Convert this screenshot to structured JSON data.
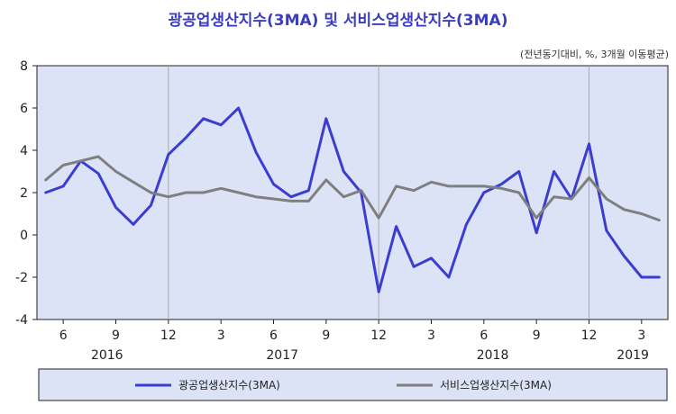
{
  "chart_data": {
    "type": "line",
    "title": "광공업생산지수(3MA)  및  서비스업생산지수(3MA)",
    "subtitle": "(전년동기대비,  %, 3개월  이동평균)",
    "ylim": [
      -4,
      8
    ],
    "yticks": [
      "8",
      "6",
      "4",
      "2",
      "0",
      "-2",
      "-4"
    ],
    "x": [
      "2016-05",
      "2016-06",
      "2016-07",
      "2016-08",
      "2016-09",
      "2016-10",
      "2016-11",
      "2016-12",
      "2017-01",
      "2017-02",
      "2017-03",
      "2017-04",
      "2017-05",
      "2017-06",
      "2017-07",
      "2017-08",
      "2017-09",
      "2017-10",
      "2017-11",
      "2017-12",
      "2018-01",
      "2018-02",
      "2018-03",
      "2018-04",
      "2018-05",
      "2018-06",
      "2018-07",
      "2018-08",
      "2018-09",
      "2018-10",
      "2018-11",
      "2018-12",
      "2019-01",
      "2019-02",
      "2019-03",
      "2019-04"
    ],
    "month_ticks": [
      "6",
      "9",
      "12",
      "3",
      "6",
      "9",
      "12",
      "3",
      "6",
      "9",
      "12",
      "3"
    ],
    "year_labels": [
      "2016",
      "2017",
      "2018",
      "2019"
    ],
    "grid": "vertical lines at December",
    "legend_position": "bottom",
    "colors": {
      "plot_bg": "#dde3f7",
      "legend_bg": "#dde3f7",
      "grid": "#aaaaaa"
    },
    "series": [
      {
        "name": "광공업생산지수(3MA)",
        "color": "#3b3dd0",
        "values": [
          2.0,
          2.3,
          3.5,
          2.9,
          1.3,
          0.5,
          1.4,
          3.8,
          4.6,
          5.5,
          5.2,
          6.0,
          3.9,
          2.4,
          1.8,
          2.1,
          5.5,
          3.0,
          2.0,
          -2.7,
          0.4,
          -1.5,
          -1.1,
          -2.0,
          0.5,
          2.0,
          2.4,
          3.0,
          0.1,
          3.0,
          1.7,
          4.3,
          0.2,
          -1.0,
          -2.0,
          -2.0
        ]
      },
      {
        "name": "서비스업생산지수(3MA)",
        "color": "#7f7f7f",
        "values": [
          2.6,
          3.3,
          3.5,
          3.7,
          3.0,
          2.5,
          2.0,
          1.8,
          2.0,
          2.0,
          2.2,
          2.0,
          1.8,
          1.7,
          1.6,
          1.6,
          2.6,
          1.8,
          2.1,
          0.8,
          2.3,
          2.1,
          2.5,
          2.3,
          2.3,
          2.3,
          2.2,
          2.0,
          0.8,
          1.8,
          1.7,
          2.7,
          1.7,
          1.2,
          1.0,
          0.7
        ]
      }
    ]
  }
}
